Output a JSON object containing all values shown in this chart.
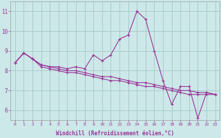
{
  "title": "",
  "xlabel": "Windchill (Refroidissement éolien,°C)",
  "ylabel": "",
  "bg_color": "#cce8e8",
  "grid_color": "#aacccc",
  "line_color": "#993399",
  "tick_color": "#993399",
  "xlim": [
    -0.5,
    23.5
  ],
  "ylim": [
    5.5,
    11.5
  ],
  "yticks": [
    6,
    7,
    8,
    9,
    10,
    11
  ],
  "xticks": [
    0,
    1,
    2,
    3,
    4,
    5,
    6,
    7,
    8,
    9,
    10,
    11,
    12,
    13,
    14,
    15,
    16,
    17,
    18,
    19,
    20,
    21,
    22,
    23
  ],
  "series": [
    [
      8.4,
      8.9,
      8.6,
      8.3,
      8.2,
      8.2,
      8.1,
      8.2,
      8.1,
      8.8,
      8.5,
      8.8,
      9.6,
      9.8,
      11.0,
      10.6,
      9.0,
      7.5,
      6.3,
      7.2,
      7.2,
      5.6,
      6.9,
      6.8
    ],
    [
      8.4,
      8.9,
      8.6,
      8.3,
      8.2,
      8.1,
      8.0,
      8.0,
      7.9,
      7.8,
      7.7,
      7.7,
      7.6,
      7.5,
      7.4,
      7.4,
      7.3,
      7.2,
      7.1,
      7.0,
      7.0,
      6.9,
      6.9,
      6.8
    ],
    [
      8.4,
      8.9,
      8.6,
      8.2,
      8.1,
      8.0,
      7.9,
      7.9,
      7.8,
      7.7,
      7.6,
      7.5,
      7.5,
      7.4,
      7.3,
      7.2,
      7.2,
      7.1,
      7.0,
      6.9,
      6.8,
      6.8,
      6.8,
      6.8
    ]
  ]
}
